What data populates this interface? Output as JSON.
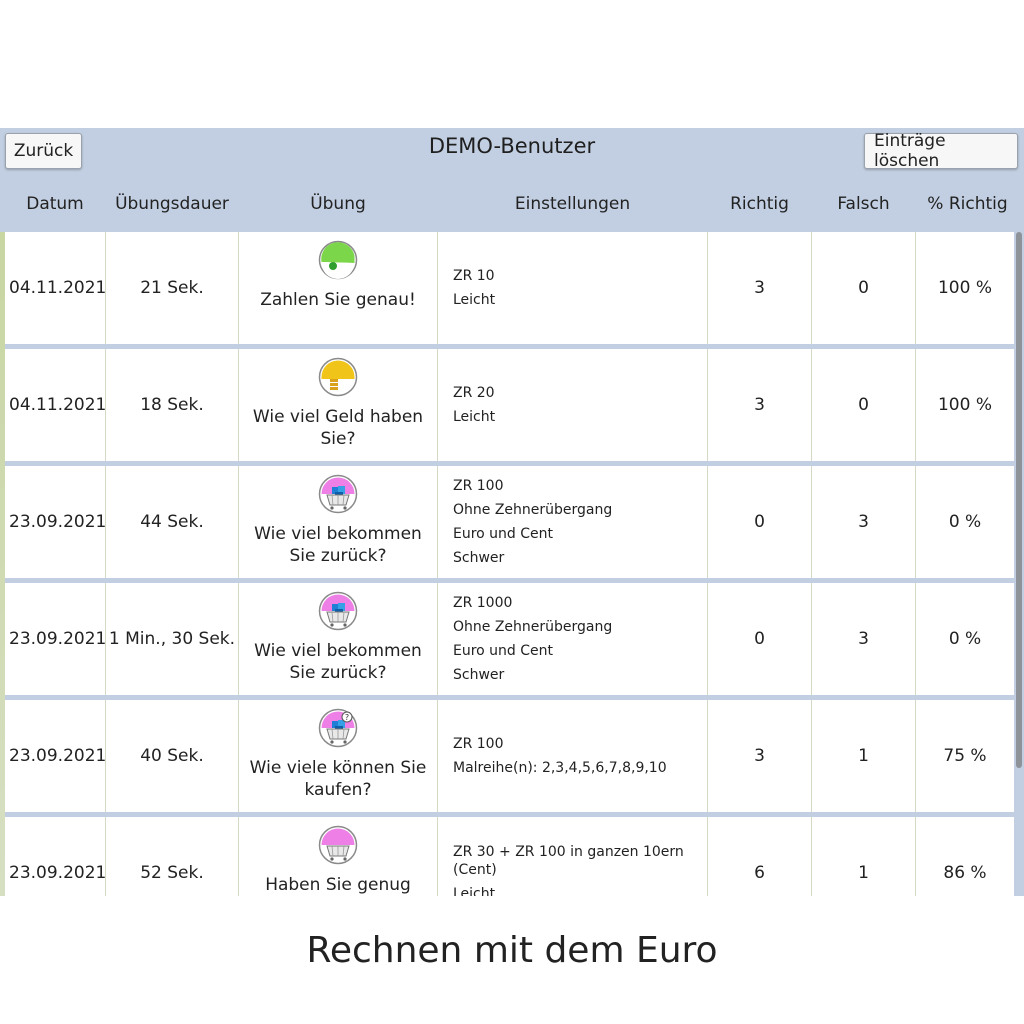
{
  "header": {
    "title": "DEMO-Benutzer",
    "back_label": "Zurück",
    "clear_label": "Einträge löschen"
  },
  "columns": [
    "Datum",
    "Übungsdauer",
    "Übung",
    "Einstellungen",
    "Richtig",
    "Falsch",
    "% Richtig"
  ],
  "rows": [
    {
      "date": "04.11.2021",
      "duration": "21 Sek.",
      "icon": "green-clock-icon",
      "exercise": "Zahlen Sie genau!",
      "settings": [
        "ZR 10",
        "Leicht"
      ],
      "right": "3",
      "wrong": "0",
      "pct": "100 %"
    },
    {
      "date": "04.11.2021",
      "duration": "18 Sek.",
      "icon": "yellow-coins-icon",
      "exercise": "Wie viel Geld haben Sie?",
      "settings": [
        "ZR 20",
        "Leicht"
      ],
      "right": "3",
      "wrong": "0",
      "pct": "100 %"
    },
    {
      "date": "23.09.2021",
      "duration": "44 Sek.",
      "icon": "pink-cart-icon",
      "exercise": "Wie viel bekommen Sie zurück?",
      "settings": [
        "ZR 100",
        "Ohne Zehnerübergang",
        "Euro und Cent",
        "Schwer"
      ],
      "right": "0",
      "wrong": "3",
      "pct": "0 %"
    },
    {
      "date": "23.09.2021",
      "duration": "1 Min., 30 Sek.",
      "icon": "pink-cart-icon",
      "exercise": "Wie viel bekommen Sie zurück?",
      "settings": [
        "ZR 1000",
        "Ohne Zehnerübergang",
        "Euro und Cent",
        "Schwer"
      ],
      "right": "0",
      "wrong": "3",
      "pct": "0 %"
    },
    {
      "date": "23.09.2021",
      "duration": "40 Sek.",
      "icon": "pink-cart-question-icon",
      "exercise": "Wie viele können Sie kaufen?",
      "settings": [
        "ZR 100",
        "Malreihe(n): 2,3,4,5,6,7,8,9,10"
      ],
      "right": "3",
      "wrong": "1",
      "pct": "75 %"
    },
    {
      "date": "23.09.2021",
      "duration": "52 Sek.",
      "icon": "pink-empty-cart-icon",
      "exercise": "Haben Sie genug Geld?",
      "settings": [
        "ZR 30 + ZR 100 in ganzen 10ern (Cent)",
        "Leicht"
      ],
      "right": "6",
      "wrong": "1",
      "pct": "86 %"
    }
  ],
  "footer": {
    "caption": "Rechnen mit dem Euro"
  }
}
